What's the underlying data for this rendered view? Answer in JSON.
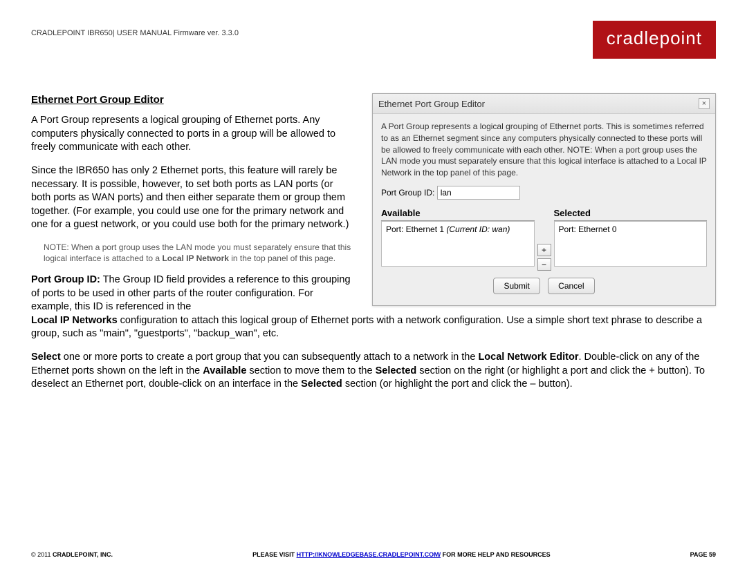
{
  "header": {
    "text": "CRADLEPOINT IBR650| USER MANUAL Firmware ver. 3.3.0",
    "logo": "cradlepoint",
    "logo_bg": "#b01116"
  },
  "section": {
    "title": "Ethernet Port Group Editor",
    "para1": "A Port Group represents a logical grouping of Ethernet ports. Any computers physically connected to ports in a group will be allowed to freely communicate with each other.",
    "para2": "Since the IBR650 has only 2 Ethernet ports, this feature will rarely be necessary. It is possible, however, to set both ports as LAN ports (or both ports as WAN ports) and then either separate them or group them together. (For example, you could use one for the primary network and one for a guest network, or you could use both for the primary network.)",
    "note_pre": "NOTE: When a port group uses the LAN mode you must separately ensure that this logical interface is attached to a ",
    "note_bold": "Local IP Network",
    "note_post": " in the top panel of this page.",
    "pg_id_label": "Port Group ID:",
    "pg_id_text": " The Group ID field provides a reference to this grouping of ports to be used in other parts of the router configuration. For example, this ID is referenced in the ",
    "lip_bold": "Local IP Networks",
    "pg_id_tail": " configuration to attach this logical group of Ethernet ports with a network configuration. Use a simple short text phrase to describe a group, such as \"main\", \"guestports\", \"backup_wan\", etc.",
    "select_b1": "Select",
    "select_t1": " one or more ports to create a port group that you can subsequently attach to a network in the ",
    "select_b2": "Local Network Editor",
    "select_t2": ". Double-click on any of the Ethernet ports shown on the left in the ",
    "select_b3": "Available",
    "select_t3": " section to move them to the ",
    "select_b4": "Selected",
    "select_t4": " section on the right (or highlight a port and click the + button). To deselect an Ethernet port, double-click on an interface in the ",
    "select_b5": "Selected",
    "select_t5": " section (or highlight the port and click the – button)."
  },
  "dialog": {
    "title": "Ethernet Port Group Editor",
    "desc": "A Port Group represents a logical grouping of Ethernet ports. This is sometimes referred to as an Ethernet segment since any computers physically connected to these ports will be allowed to freely communicate with each other. NOTE: When a port group uses the LAN mode you must separately ensure that this logical interface is attached to a Local IP Network in the top panel of this page.",
    "field_label": "Port Group ID:",
    "field_value": "lan",
    "available_header": "Available",
    "available_item_pre": "Port: Ethernet 1 ",
    "available_item_italic": "(Current ID: wan)",
    "selected_header": "Selected",
    "selected_item": "Port: Ethernet 0",
    "btn_plus": "+",
    "btn_minus": "−",
    "submit": "Submit",
    "cancel": "Cancel",
    "close": "×"
  },
  "footer": {
    "copyright": "© 2011 ",
    "company": "CRADLEPOINT, INC.",
    "visit_pre": "PLEASE VISIT ",
    "link": "HTTP://KNOWLEDGEBASE.CRADLEPOINT.COM/",
    "visit_post": " FOR MORE HELP AND RESOURCES",
    "page": "PAGE 59"
  }
}
